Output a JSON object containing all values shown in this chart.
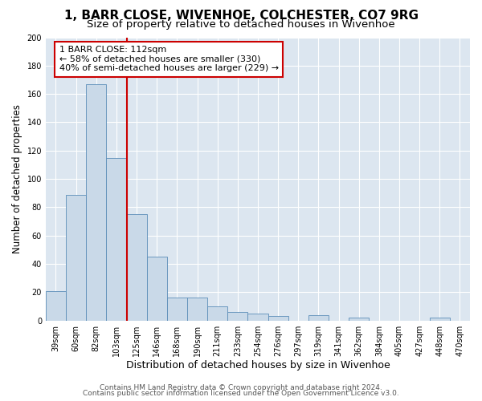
{
  "title": "1, BARR CLOSE, WIVENHOE, COLCHESTER, CO7 9RG",
  "subtitle": "Size of property relative to detached houses in Wivenhoe",
  "xlabel": "Distribution of detached houses by size in Wivenhoe",
  "ylabel": "Number of detached properties",
  "bar_labels": [
    "39sqm",
    "60sqm",
    "82sqm",
    "103sqm",
    "125sqm",
    "146sqm",
    "168sqm",
    "190sqm",
    "211sqm",
    "233sqm",
    "254sqm",
    "276sqm",
    "297sqm",
    "319sqm",
    "341sqm",
    "362sqm",
    "384sqm",
    "405sqm",
    "427sqm",
    "448sqm",
    "470sqm"
  ],
  "bar_values": [
    21,
    89,
    167,
    115,
    75,
    45,
    16,
    16,
    10,
    6,
    5,
    3,
    0,
    4,
    0,
    2,
    0,
    0,
    0,
    2,
    0
  ],
  "bar_color": "#c9d9e8",
  "bar_edge_color": "#5b8db8",
  "vline_x": 3.5,
  "vline_color": "#cc0000",
  "annotation_title": "1 BARR CLOSE: 112sqm",
  "annotation_line1": "← 58% of detached houses are smaller (330)",
  "annotation_line2": "40% of semi-detached houses are larger (229) →",
  "annotation_box_color": "#cc0000",
  "ylim": [
    0,
    200
  ],
  "yticks": [
    0,
    20,
    40,
    60,
    80,
    100,
    120,
    140,
    160,
    180,
    200
  ],
  "bg_color": "#dce6f0",
  "grid_color": "#ffffff",
  "footer_line1": "Contains HM Land Registry data © Crown copyright and database right 2024.",
  "footer_line2": "Contains public sector information licensed under the Open Government Licence v3.0.",
  "title_fontsize": 11,
  "subtitle_fontsize": 9.5,
  "xlabel_fontsize": 9,
  "ylabel_fontsize": 8.5,
  "tick_fontsize": 7,
  "annotation_fontsize": 8,
  "footer_fontsize": 6.5
}
